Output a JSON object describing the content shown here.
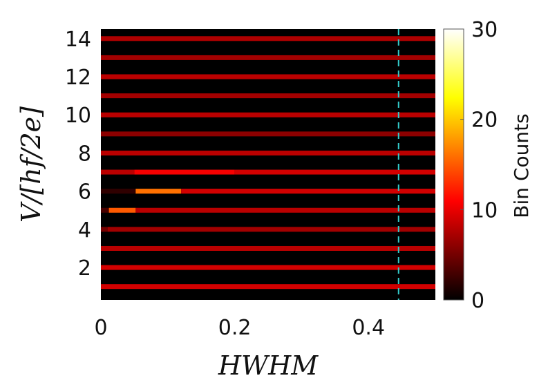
{
  "chart_data": {
    "type": "heatmap",
    "title": "",
    "xlabel": "HWHM",
    "ylabel": "V/[hf/2e]",
    "xlim": [
      0,
      0.5
    ],
    "ylim": [
      0.3,
      14.5
    ],
    "x_ticks": [
      "0",
      "0.2",
      "0.4"
    ],
    "x_tick_values": [
      0,
      0.2,
      0.4
    ],
    "y_ticks": [
      "2",
      "4",
      "6",
      "8",
      "10",
      "12",
      "14"
    ],
    "y_tick_values": [
      2,
      4,
      6,
      8,
      10,
      12,
      14
    ],
    "colorbar": {
      "label": "Bin Counts",
      "range": [
        0,
        30
      ],
      "ticks": [
        "0",
        "10",
        "20",
        "30"
      ],
      "tick_values": [
        0,
        10,
        20,
        30
      ],
      "colormap": "hot"
    },
    "background_value": 0,
    "rows": [
      {
        "v": 1,
        "segments": [
          [
            0,
            0.5,
            9
          ]
        ]
      },
      {
        "v": 2,
        "segments": [
          [
            0,
            0.5,
            9
          ]
        ]
      },
      {
        "v": 3,
        "segments": [
          [
            0,
            0.5,
            8
          ]
        ]
      },
      {
        "v": 4,
        "segments": [
          [
            0,
            0.01,
            5
          ],
          [
            0.01,
            0.5,
            7
          ]
        ]
      },
      {
        "v": 5,
        "segments": [
          [
            0,
            0.012,
            3
          ],
          [
            0.012,
            0.052,
            15
          ],
          [
            0.052,
            0.5,
            8
          ]
        ]
      },
      {
        "v": 6,
        "segments": [
          [
            0,
            0.052,
            2
          ],
          [
            0.052,
            0.12,
            16
          ],
          [
            0.12,
            0.5,
            9
          ]
        ]
      },
      {
        "v": 7,
        "segments": [
          [
            0,
            0.05,
            8
          ],
          [
            0.05,
            0.2,
            10.5
          ],
          [
            0.2,
            0.5,
            9
          ]
        ]
      },
      {
        "v": 8,
        "segments": [
          [
            0,
            0.5,
            8
          ]
        ]
      },
      {
        "v": 9,
        "segments": [
          [
            0,
            0.5,
            6
          ]
        ]
      },
      {
        "v": 10,
        "segments": [
          [
            0,
            0.5,
            8
          ]
        ]
      },
      {
        "v": 11,
        "segments": [
          [
            0,
            0.5,
            7
          ]
        ]
      },
      {
        "v": 12,
        "segments": [
          [
            0,
            0.5,
            8
          ]
        ]
      },
      {
        "v": 13,
        "segments": [
          [
            0,
            0.5,
            7
          ]
        ]
      },
      {
        "v": 14,
        "segments": [
          [
            0,
            0.5,
            7.5
          ]
        ]
      }
    ],
    "reference_line": {
      "x": 0.445,
      "style": "dashed",
      "color": "#33cccc"
    }
  }
}
